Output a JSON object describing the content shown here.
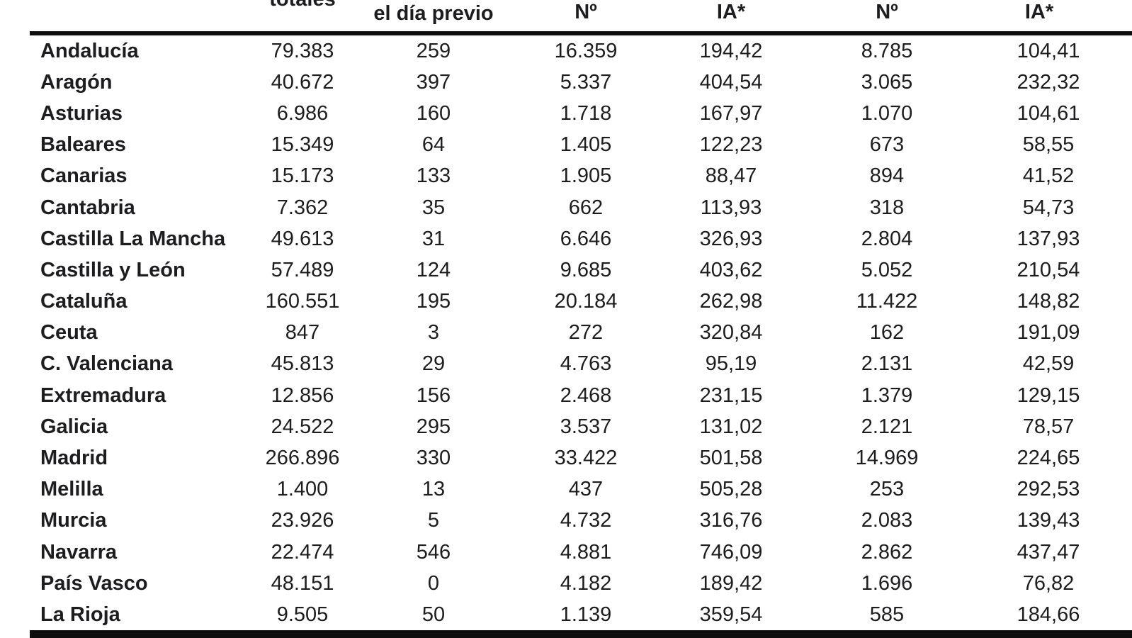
{
  "colors": {
    "text": "#1d1d1f",
    "rule": "#0e0e0e",
    "background": "#ffffff"
  },
  "table": {
    "headers": {
      "totales_partial": "totales",
      "dia_previo": "el día previo",
      "num_1": "Nº",
      "ia_1": "IA*",
      "num_2": "Nº",
      "ia_2": "IA*"
    },
    "rows": [
      {
        "region": "Andalucía",
        "totales": "79.383",
        "dia_previo": "259",
        "num_1": "16.359",
        "ia_1": "194,42",
        "num_2": "8.785",
        "ia_2": "104,41"
      },
      {
        "region": "Aragón",
        "totales": "40.672",
        "dia_previo": "397",
        "num_1": "5.337",
        "ia_1": "404,54",
        "num_2": "3.065",
        "ia_2": "232,32"
      },
      {
        "region": "Asturias",
        "totales": "6.986",
        "dia_previo": "160",
        "num_1": "1.718",
        "ia_1": "167,97",
        "num_2": "1.070",
        "ia_2": "104,61"
      },
      {
        "region": "Baleares",
        "totales": "15.349",
        "dia_previo": "64",
        "num_1": "1.405",
        "ia_1": "122,23",
        "num_2": "673",
        "ia_2": "58,55"
      },
      {
        "region": "Canarias",
        "totales": "15.173",
        "dia_previo": "133",
        "num_1": "1.905",
        "ia_1": "88,47",
        "num_2": "894",
        "ia_2": "41,52"
      },
      {
        "region": "Cantabria",
        "totales": "7.362",
        "dia_previo": "35",
        "num_1": "662",
        "ia_1": "113,93",
        "num_2": "318",
        "ia_2": "54,73"
      },
      {
        "region": "Castilla La Mancha",
        "totales": "49.613",
        "dia_previo": "31",
        "num_1": "6.646",
        "ia_1": "326,93",
        "num_2": "2.804",
        "ia_2": "137,93"
      },
      {
        "region": "Castilla y León",
        "totales": "57.489",
        "dia_previo": "124",
        "num_1": "9.685",
        "ia_1": "403,62",
        "num_2": "5.052",
        "ia_2": "210,54"
      },
      {
        "region": "Cataluña",
        "totales": "160.551",
        "dia_previo": "195",
        "num_1": "20.184",
        "ia_1": "262,98",
        "num_2": "11.422",
        "ia_2": "148,82"
      },
      {
        "region": "Ceuta",
        "totales": "847",
        "dia_previo": "3",
        "num_1": "272",
        "ia_1": "320,84",
        "num_2": "162",
        "ia_2": "191,09"
      },
      {
        "region": "C. Valenciana",
        "totales": "45.813",
        "dia_previo": "29",
        "num_1": "4.763",
        "ia_1": "95,19",
        "num_2": "2.131",
        "ia_2": "42,59"
      },
      {
        "region": "Extremadura",
        "totales": "12.856",
        "dia_previo": "156",
        "num_1": "2.468",
        "ia_1": "231,15",
        "num_2": "1.379",
        "ia_2": "129,15"
      },
      {
        "region": "Galicia",
        "totales": "24.522",
        "dia_previo": "295",
        "num_1": "3.537",
        "ia_1": "131,02",
        "num_2": "2.121",
        "ia_2": "78,57"
      },
      {
        "region": "Madrid",
        "totales": "266.896",
        "dia_previo": "330",
        "num_1": "33.422",
        "ia_1": "501,58",
        "num_2": "14.969",
        "ia_2": "224,65"
      },
      {
        "region": "Melilla",
        "totales": "1.400",
        "dia_previo": "13",
        "num_1": "437",
        "ia_1": "505,28",
        "num_2": "253",
        "ia_2": "292,53"
      },
      {
        "region": "Murcia",
        "totales": "23.926",
        "dia_previo": "5",
        "num_1": "4.732",
        "ia_1": "316,76",
        "num_2": "2.083",
        "ia_2": "139,43"
      },
      {
        "region": "Navarra",
        "totales": "22.474",
        "dia_previo": "546",
        "num_1": "4.881",
        "ia_1": "746,09",
        "num_2": "2.862",
        "ia_2": "437,47"
      },
      {
        "region": "País Vasco",
        "totales": "48.151",
        "dia_previo": "0",
        "num_1": "4.182",
        "ia_1": "189,42",
        "num_2": "1.696",
        "ia_2": "76,82"
      },
      {
        "region": "La Rioja",
        "totales": "9.505",
        "dia_previo": "50",
        "num_1": "1.139",
        "ia_1": "359,54",
        "num_2": "585",
        "ia_2": "184,66"
      }
    ]
  }
}
